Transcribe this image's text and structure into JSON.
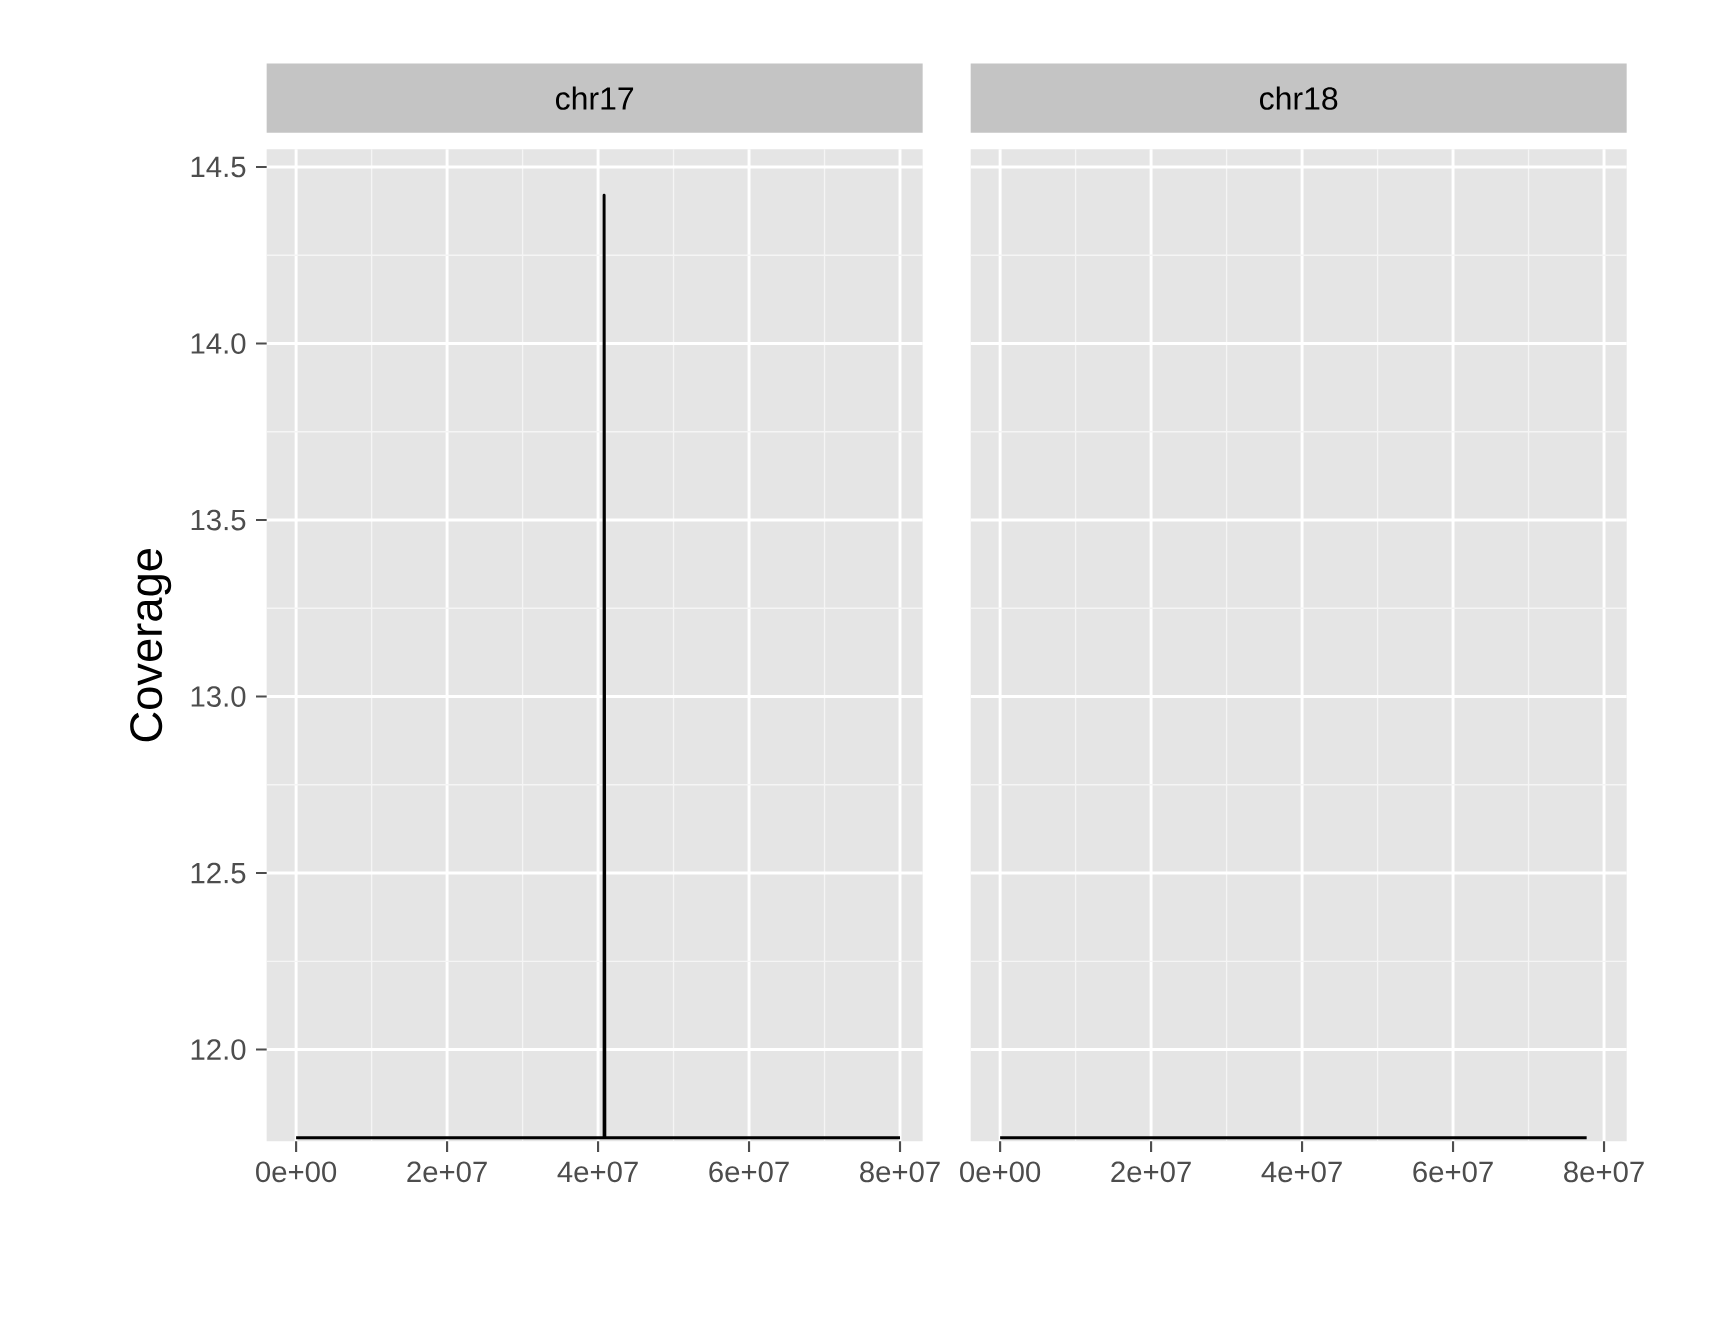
{
  "chart_data": [
    {
      "type": "line",
      "title": "chr17",
      "ylabel": "Coverage",
      "x": [
        0,
        40800000,
        40800000,
        40900000,
        80000000
      ],
      "series": [
        {
          "color": "#000000",
          "values": [
            11.75,
            11.75,
            14.42,
            11.75,
            11.75
          ]
        }
      ],
      "xlim": [
        -3900000,
        83000000
      ],
      "xticks": [
        {
          "value": 0,
          "label": "0e+00"
        },
        {
          "value": 20000000,
          "label": "2e+07"
        },
        {
          "value": 40000000,
          "label": "4e+07"
        },
        {
          "value": 60000000,
          "label": "6e+07"
        },
        {
          "value": 80000000,
          "label": "8e+07"
        }
      ],
      "ylim": [
        11.74,
        14.55
      ],
      "yticks": [
        {
          "value": 12,
          "label": "12.0"
        },
        {
          "value": 12.5,
          "label": "12.5"
        },
        {
          "value": 13,
          "label": "13.0"
        },
        {
          "value": 13.5,
          "label": "13.5"
        },
        {
          "value": 14,
          "label": "14.0"
        },
        {
          "value": 14.5,
          "label": "14.5"
        }
      ],
      "grid": true
    },
    {
      "type": "line",
      "title": "chr18",
      "x": [
        0,
        77700000
      ],
      "series": [
        {
          "color": "#000000",
          "values": [
            11.75,
            11.75
          ]
        }
      ],
      "xlim": [
        -3900000,
        83000000
      ],
      "xticks": [
        {
          "value": 0,
          "label": "0e+00"
        },
        {
          "value": 20000000,
          "label": "2e+07"
        },
        {
          "value": 40000000,
          "label": "4e+07"
        },
        {
          "value": 60000000,
          "label": "6e+07"
        },
        {
          "value": 80000000,
          "label": "8e+07"
        }
      ],
      "ylim": [
        11.74,
        14.55
      ],
      "yticks": [
        12,
        12.5,
        13,
        13.5,
        14,
        14.5
      ],
      "grid": true,
      "tick_labels": "x"
    }
  ]
}
